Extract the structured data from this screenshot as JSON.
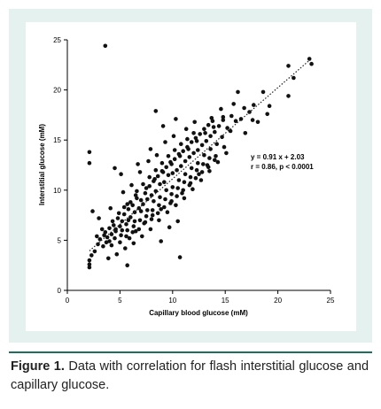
{
  "chart_data": {
    "type": "scatter",
    "xlabel": "Capillary blood glucose (mM)",
    "ylabel": "Interstitial glucose (mM)",
    "xlim": [
      0,
      25
    ],
    "ylim": [
      0,
      25
    ],
    "xticks": [
      "0",
      "5",
      "10",
      "15",
      "20",
      "25"
    ],
    "yticks": [
      "0",
      "5",
      "10",
      "15",
      "20",
      "25"
    ],
    "annotations": [
      "y = 0.91 x + 2.03",
      "r = 0.86, p < 0.0001"
    ],
    "fit_line": {
      "slope": 0.91,
      "intercept": 2.03,
      "x_range": [
        2.1,
        23.2
      ],
      "style": "dotted"
    },
    "grid": false,
    "points": [
      [
        3.6,
        24.4
      ],
      [
        23.2,
        22.6
      ],
      [
        21.0,
        22.4
      ],
      [
        21.5,
        21.2
      ],
      [
        21.0,
        19.4
      ],
      [
        23.0,
        23.1
      ],
      [
        16.2,
        19.8
      ],
      [
        18.6,
        19.8
      ],
      [
        17.7,
        18.5
      ],
      [
        16.8,
        18.2
      ],
      [
        19.0,
        17.6
      ],
      [
        14.8,
        17.3
      ],
      [
        8.4,
        17.9
      ],
      [
        10.3,
        17.1
      ],
      [
        2.1,
        13.8
      ],
      [
        2.1,
        12.7
      ],
      [
        10.7,
        3.3
      ],
      [
        5.7,
        2.5
      ],
      [
        2.1,
        2.3
      ],
      [
        2.1,
        2.6
      ],
      [
        2.1,
        3.0
      ],
      [
        2.3,
        3.5
      ],
      [
        2.6,
        3.9
      ],
      [
        2.9,
        4.6
      ],
      [
        3.1,
        5.1
      ],
      [
        3.4,
        4.4
      ],
      [
        3.6,
        5.8
      ],
      [
        3.8,
        5.3
      ],
      [
        4.0,
        6.2
      ],
      [
        4.2,
        5.6
      ],
      [
        4.4,
        6.5
      ],
      [
        4.6,
        5.9
      ],
      [
        4.8,
        7.2
      ],
      [
        5.0,
        6.4
      ],
      [
        5.2,
        6.9
      ],
      [
        5.4,
        7.6
      ],
      [
        5.6,
        6.6
      ],
      [
        5.8,
        8.1
      ],
      [
        6.0,
        7.3
      ],
      [
        6.2,
        8.5
      ],
      [
        6.4,
        7.8
      ],
      [
        6.6,
        9.2
      ],
      [
        6.8,
        8.2
      ],
      [
        7.0,
        9.0
      ],
      [
        7.2,
        8.6
      ],
      [
        7.4,
        9.7
      ],
      [
        7.6,
        9.1
      ],
      [
        7.8,
        10.4
      ],
      [
        8.0,
        9.5
      ],
      [
        8.2,
        10.9
      ],
      [
        8.4,
        9.9
      ],
      [
        8.6,
        11.4
      ],
      [
        8.8,
        10.6
      ],
      [
        9.0,
        11.9
      ],
      [
        9.2,
        10.8
      ],
      [
        9.4,
        12.3
      ],
      [
        9.6,
        11.5
      ],
      [
        9.8,
        12.8
      ],
      [
        10.0,
        11.7
      ],
      [
        10.2,
        13.1
      ],
      [
        10.4,
        12.0
      ],
      [
        10.6,
        13.6
      ],
      [
        10.8,
        12.4
      ],
      [
        11.0,
        13.9
      ],
      [
        11.2,
        12.9
      ],
      [
        11.4,
        14.3
      ],
      [
        11.6,
        13.3
      ],
      [
        11.8,
        14.8
      ],
      [
        12.0,
        13.7
      ],
      [
        12.2,
        15.2
      ],
      [
        12.4,
        14.0
      ],
      [
        12.6,
        15.6
      ],
      [
        12.8,
        14.5
      ],
      [
        13.0,
        16.1
      ],
      [
        13.2,
        14.9
      ],
      [
        13.4,
        16.5
      ],
      [
        13.6,
        15.4
      ],
      [
        13.8,
        16.9
      ],
      [
        14.0,
        15.8
      ],
      [
        14.4,
        16.4
      ],
      [
        14.8,
        17.0
      ],
      [
        15.2,
        16.2
      ],
      [
        15.6,
        17.4
      ],
      [
        16.0,
        16.9
      ],
      [
        4.1,
        8.2
      ],
      [
        5.3,
        9.8
      ],
      [
        6.1,
        10.5
      ],
      [
        6.9,
        11.8
      ],
      [
        7.7,
        12.9
      ],
      [
        8.5,
        13.5
      ],
      [
        9.3,
        14.8
      ],
      [
        10.1,
        15.4
      ],
      [
        11.3,
        16.1
      ],
      [
        12.1,
        16.8
      ],
      [
        13.7,
        17.2
      ],
      [
        5.1,
        11.6
      ],
      [
        4.5,
        12.2
      ],
      [
        6.7,
        12.6
      ],
      [
        7.9,
        14.1
      ],
      [
        9.1,
        16.4
      ],
      [
        3.0,
        7.2
      ],
      [
        2.4,
        7.9
      ],
      [
        6.3,
        4.7
      ],
      [
        7.1,
        5.4
      ],
      [
        7.9,
        6.1
      ],
      [
        8.7,
        7.0
      ],
      [
        9.5,
        7.8
      ],
      [
        10.3,
        8.5
      ],
      [
        11.1,
        9.2
      ],
      [
        11.9,
        10.1
      ],
      [
        12.7,
        11.0
      ],
      [
        13.5,
        11.9
      ],
      [
        14.3,
        12.8
      ],
      [
        15.1,
        13.7
      ],
      [
        8.9,
        4.9
      ],
      [
        9.7,
        6.3
      ],
      [
        10.5,
        6.9
      ],
      [
        5.5,
        4.2
      ],
      [
        4.7,
        3.6
      ],
      [
        3.9,
        3.2
      ],
      [
        5.9,
        5.2
      ],
      [
        6.5,
        5.9
      ],
      [
        7.3,
        6.7
      ],
      [
        8.1,
        7.5
      ],
      [
        8.9,
        8.1
      ],
      [
        9.9,
        8.9
      ],
      [
        10.9,
        9.7
      ],
      [
        11.7,
        10.7
      ],
      [
        12.5,
        11.6
      ],
      [
        13.3,
        12.5
      ],
      [
        14.1,
        13.4
      ],
      [
        14.9,
        14.3
      ],
      [
        4.3,
        6.9
      ],
      [
        4.9,
        7.7
      ],
      [
        5.7,
        8.6
      ],
      [
        6.5,
        9.5
      ],
      [
        7.5,
        10.2
      ],
      [
        8.3,
        11.1
      ],
      [
        9.1,
        11.8
      ],
      [
        9.9,
        12.6
      ],
      [
        10.7,
        13.4
      ],
      [
        11.5,
        14.1
      ],
      [
        12.3,
        14.9
      ],
      [
        13.1,
        15.7
      ],
      [
        13.9,
        16.3
      ],
      [
        14.7,
        15.3
      ],
      [
        15.5,
        15.9
      ],
      [
        16.5,
        17.1
      ],
      [
        17.3,
        17.8
      ],
      [
        3.3,
        6.1
      ],
      [
        2.8,
        5.4
      ],
      [
        3.7,
        4.8
      ],
      [
        4.5,
        5.2
      ],
      [
        5.1,
        5.5
      ],
      [
        5.7,
        6.0
      ],
      [
        6.3,
        6.4
      ],
      [
        6.9,
        7.0
      ],
      [
        7.5,
        7.4
      ],
      [
        8.1,
        8.0
      ],
      [
        8.7,
        8.5
      ],
      [
        9.3,
        9.1
      ],
      [
        9.9,
        9.6
      ],
      [
        10.5,
        10.2
      ],
      [
        11.1,
        10.8
      ],
      [
        11.7,
        11.3
      ],
      [
        12.3,
        12.0
      ],
      [
        12.9,
        12.6
      ],
      [
        13.5,
        13.2
      ],
      [
        4.0,
        4.9
      ],
      [
        4.6,
        6.1
      ],
      [
        5.2,
        6.0
      ],
      [
        5.8,
        7.0
      ],
      [
        6.4,
        6.9
      ],
      [
        7.0,
        7.9
      ],
      [
        7.6,
        8.0
      ],
      [
        8.2,
        8.9
      ],
      [
        8.8,
        9.3
      ],
      [
        9.4,
        10.0
      ],
      [
        10.0,
        10.3
      ],
      [
        10.6,
        11.0
      ],
      [
        11.2,
        11.6
      ],
      [
        11.8,
        12.2
      ],
      [
        12.4,
        12.7
      ],
      [
        13.0,
        13.5
      ],
      [
        13.6,
        14.1
      ],
      [
        14.2,
        14.6
      ],
      [
        5.4,
        8.3
      ],
      [
        6.0,
        8.8
      ],
      [
        6.6,
        9.9
      ],
      [
        7.2,
        10.6
      ],
      [
        7.8,
        11.3
      ],
      [
        8.4,
        12.0
      ],
      [
        9.0,
        12.7
      ],
      [
        9.6,
        13.4
      ],
      [
        10.2,
        14.0
      ],
      [
        10.8,
        14.6
      ],
      [
        11.4,
        15.1
      ],
      [
        12.0,
        15.7
      ],
      [
        3.5,
        5.5
      ],
      [
        4.2,
        4.5
      ],
      [
        5.0,
        4.8
      ],
      [
        5.6,
        5.4
      ],
      [
        6.2,
        5.8
      ],
      [
        6.8,
        6.1
      ],
      [
        7.4,
        6.8
      ],
      [
        8.0,
        7.1
      ],
      [
        8.6,
        7.7
      ],
      [
        9.2,
        8.3
      ],
      [
        9.8,
        8.7
      ],
      [
        10.4,
        9.4
      ],
      [
        11.0,
        10.0
      ],
      [
        11.6,
        10.5
      ],
      [
        12.2,
        11.2
      ],
      [
        12.8,
        11.8
      ],
      [
        13.4,
        12.3
      ],
      [
        14.0,
        13.0
      ],
      [
        18.1,
        16.8
      ],
      [
        16.9,
        15.7
      ],
      [
        19.2,
        18.4
      ],
      [
        15.8,
        18.6
      ],
      [
        14.6,
        18.1
      ],
      [
        17.6,
        17.0
      ]
    ]
  }
}
